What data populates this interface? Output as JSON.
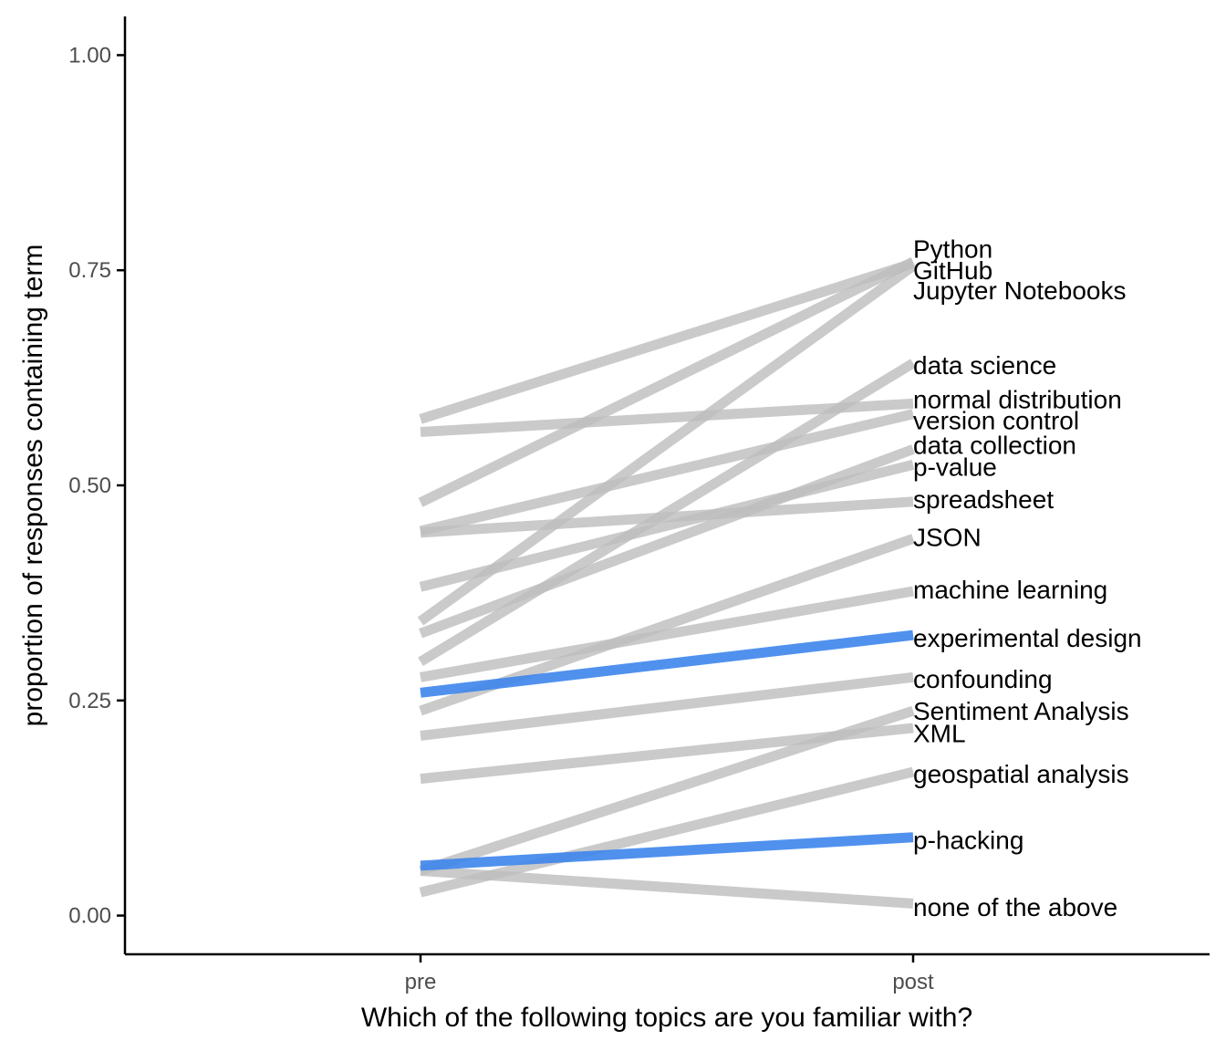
{
  "chart_data": {
    "type": "line",
    "title": "",
    "xlabel": "Which of the following topics are you familiar with?",
    "ylabel": "proportion of responses containing term",
    "categories": [
      "pre",
      "post"
    ],
    "ylim": [
      -0.045,
      1.045
    ],
    "yticks": [
      0.0,
      0.25,
      0.5,
      0.75,
      1.0
    ],
    "ytick_labels": [
      "0.00",
      "0.25",
      "0.50",
      "0.75",
      "1.00"
    ],
    "grid": false,
    "legend": "none",
    "colors": {
      "default": "#bdbdbd",
      "highlight": "#3d85ec"
    },
    "series": [
      {
        "name": "Python",
        "values": [
          0.577,
          0.758
        ],
        "highlight": false
      },
      {
        "name": "GitHub",
        "values": [
          0.342,
          0.755
        ],
        "highlight": false
      },
      {
        "name": "Jupyter Notebooks",
        "values": [
          0.48,
          0.76
        ],
        "highlight": false
      },
      {
        "name": "data science",
        "values": [
          0.295,
          0.642
        ],
        "highlight": false
      },
      {
        "name": "normal distribution",
        "values": [
          0.562,
          0.595
        ],
        "highlight": false
      },
      {
        "name": "version control",
        "values": [
          0.447,
          0.583
        ],
        "highlight": false
      },
      {
        "name": "data collection",
        "values": [
          0.328,
          0.542
        ],
        "highlight": false
      },
      {
        "name": "p-value",
        "values": [
          0.382,
          0.524
        ],
        "highlight": false
      },
      {
        "name": "spreadsheet",
        "values": [
          0.445,
          0.481
        ],
        "highlight": false
      },
      {
        "name": "JSON",
        "values": [
          0.238,
          0.438
        ],
        "highlight": false
      },
      {
        "name": "machine learning",
        "values": [
          0.277,
          0.377
        ],
        "highlight": false
      },
      {
        "name": "experimental design",
        "values": [
          0.259,
          0.326
        ],
        "highlight": true
      },
      {
        "name": "confounding",
        "values": [
          0.209,
          0.277
        ],
        "highlight": false
      },
      {
        "name": "Sentiment Analysis",
        "values": [
          0.052,
          0.238
        ],
        "highlight": false
      },
      {
        "name": "XML",
        "values": [
          0.159,
          0.218
        ],
        "highlight": false
      },
      {
        "name": "geospatial analysis",
        "values": [
          0.027,
          0.167
        ],
        "highlight": false
      },
      {
        "name": "p-hacking",
        "values": [
          0.058,
          0.091
        ],
        "highlight": true
      },
      {
        "name": "none of the above",
        "values": [
          0.052,
          0.014
        ],
        "highlight": false
      }
    ],
    "label_y_positions": [
      0.775,
      0.75,
      0.727,
      0.64,
      0.6,
      0.576,
      0.547,
      0.522,
      0.484,
      0.44,
      0.379,
      0.323,
      0.275,
      0.238,
      0.212,
      0.165,
      0.088,
      0.01
    ]
  }
}
